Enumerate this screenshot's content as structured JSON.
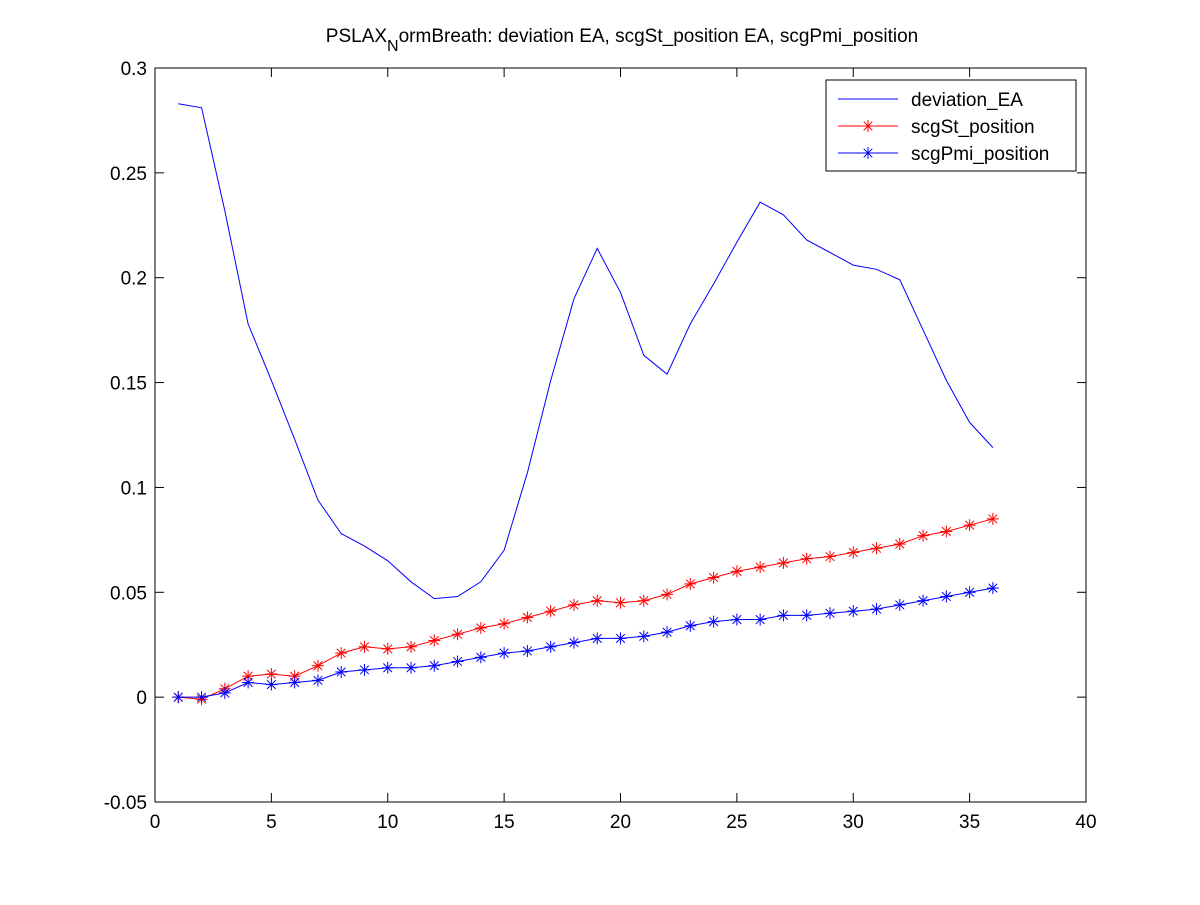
{
  "chart_data": {
    "type": "line",
    "title": "PSLAX",
    "title_subscript": "N",
    "title_rest": "ormBreath: deviation EA, scgSt_position EA, scgPmi_position",
    "xlabel": "",
    "ylabel": "",
    "xlim": [
      0,
      40
    ],
    "ylim": [
      -0.05,
      0.3
    ],
    "xticks": [
      0,
      5,
      10,
      15,
      20,
      25,
      30,
      35,
      40
    ],
    "xtick_labels": [
      "0",
      "5",
      "10",
      "15",
      "20",
      "25",
      "30",
      "35",
      "40"
    ],
    "yticks": [
      -0.05,
      0,
      0.05,
      0.1,
      0.15,
      0.2,
      0.25,
      0.3
    ],
    "ytick_labels": [
      "-0.05",
      "0",
      "0.05",
      "0.1",
      "0.15",
      "0.2",
      "0.25",
      "0.3"
    ],
    "grid": false,
    "legend_position": "top-right",
    "x": [
      1,
      2,
      3,
      4,
      5,
      6,
      7,
      8,
      9,
      10,
      11,
      12,
      13,
      14,
      15,
      16,
      17,
      18,
      19,
      20,
      21,
      22,
      23,
      24,
      25,
      26,
      27,
      28,
      29,
      30,
      31,
      32,
      33,
      34,
      35,
      36
    ],
    "series": [
      {
        "name": "deviation_EA",
        "color": "#0000ff",
        "marker": "none",
        "values": [
          0.283,
          0.281,
          0.232,
          0.178,
          0.151,
          0.123,
          0.094,
          0.078,
          0.072,
          0.065,
          0.055,
          0.047,
          0.048,
          0.055,
          0.07,
          0.107,
          0.151,
          0.19,
          0.214,
          0.193,
          0.163,
          0.154,
          0.178,
          0.197,
          0.217,
          0.236,
          0.23,
          0.218,
          0.212,
          0.206,
          0.204,
          0.199,
          0.175,
          0.151,
          0.131,
          0.119
        ]
      },
      {
        "name": "scgSt_position",
        "color": "#ff0000",
        "marker": "asterisk",
        "values": [
          0.0,
          -0.001,
          0.004,
          0.01,
          0.011,
          0.01,
          0.015,
          0.021,
          0.024,
          0.023,
          0.024,
          0.027,
          0.03,
          0.033,
          0.035,
          0.038,
          0.041,
          0.044,
          0.046,
          0.045,
          0.046,
          0.049,
          0.054,
          0.057,
          0.06,
          0.062,
          0.064,
          0.066,
          0.067,
          0.069,
          0.071,
          0.073,
          0.077,
          0.079,
          0.082,
          0.085
        ]
      },
      {
        "name": "scgPmi_position",
        "color": "#0000ff",
        "marker": "asterisk",
        "values": [
          0.0,
          0.0,
          0.002,
          0.007,
          0.006,
          0.007,
          0.008,
          0.012,
          0.013,
          0.014,
          0.014,
          0.015,
          0.017,
          0.019,
          0.021,
          0.022,
          0.024,
          0.026,
          0.028,
          0.028,
          0.029,
          0.031,
          0.034,
          0.036,
          0.037,
          0.037,
          0.039,
          0.039,
          0.04,
          0.041,
          0.042,
          0.044,
          0.046,
          0.048,
          0.05,
          0.052
        ]
      }
    ]
  }
}
